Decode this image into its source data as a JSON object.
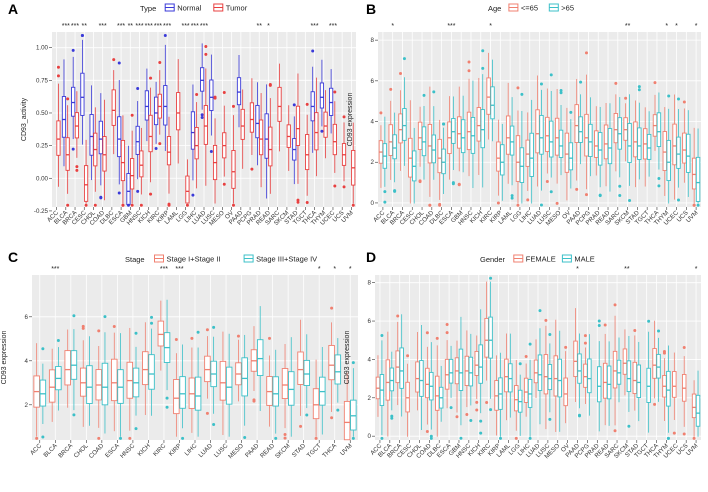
{
  "colors": {
    "A": [
      "#3a3ad8",
      "#e84040"
    ],
    "B": [
      "#f08070",
      "#3cc0c8"
    ],
    "C": [
      "#f08070",
      "#3cc0c8"
    ],
    "D": [
      "#f08070",
      "#3cc0c8"
    ]
  },
  "chart_data": [
    {
      "panel": "A",
      "type": "box",
      "legend_title": "Type",
      "series": [
        {
          "name": "Normal"
        },
        {
          "name": "Tumor"
        }
      ],
      "ylabel": "CD93_activity",
      "ylim": [
        -0.22,
        1.12
      ],
      "yticks": [
        -0.25,
        0.0,
        0.25,
        0.5,
        0.75,
        1.0
      ],
      "ytick_labels": [
        "-0.25",
        "0.00",
        "0.25",
        "0.50",
        "0.75",
        "1.00"
      ],
      "categories": [
        "ACC",
        "BLCA",
        "BRCA",
        "CESC",
        "CHOL",
        "COAD",
        "DLBC",
        "ESCA",
        "GBM",
        "HNSC",
        "KICH",
        "KIRC",
        "KIRP",
        "LAML",
        "LGG",
        "LIHC",
        "LUAD",
        "LUSC",
        "MESO",
        "OV",
        "PAAD",
        "PCPG",
        "PRAD",
        "READ",
        "SARC",
        "SKCM",
        "STAD",
        "TGCT",
        "THCA",
        "THYM",
        "UCEC",
        "UCS",
        "UVM"
      ],
      "significance": [
        "",
        "***",
        "***",
        "**",
        "",
        "***",
        "",
        "***",
        "**",
        "***",
        "***",
        "***",
        "***",
        "",
        "***",
        "***",
        "***",
        "",
        "",
        "",
        "",
        "",
        "**",
        "*",
        "",
        "",
        "",
        "",
        "***",
        "",
        "***",
        "",
        ""
      ],
      "medians": [
        [
          null,
          0.3
        ],
        [
          0.45,
          0.18
        ],
        [
          0.58,
          0.4
        ],
        [
          0.62,
          -0.05
        ],
        [
          0.32,
          0.22
        ],
        [
          0.3,
          0.18
        ],
        [
          null,
          0.52
        ],
        [
          0.3,
          0.12
        ],
        [
          -0.1,
          0.02
        ],
        [
          0.28,
          0.1
        ],
        [
          0.55,
          0.32
        ],
        [
          0.5,
          0.55
        ],
        [
          0.55,
          0.2
        ],
        [
          null,
          0.5
        ],
        [
          null,
          -0.1
        ],
        [
          0.35,
          0.25
        ],
        [
          0.75,
          0.4
        ],
        [
          0.62,
          0.12
        ],
        [
          null,
          0.25
        ],
        [
          null,
          0.05
        ],
        [
          0.66,
          0.4
        ],
        [
          null,
          0.45
        ],
        [
          0.42,
          0.3
        ],
        [
          0.3,
          0.22
        ],
        [
          null,
          0.55
        ],
        [
          null,
          0.32
        ],
        [
          0.22,
          0.38
        ],
        [
          null,
          0.18
        ],
        [
          0.55,
          0.35
        ],
        [
          0.62,
          0.4
        ],
        [
          0.58,
          0.28
        ],
        [
          null,
          0.18
        ],
        [
          null,
          0.08
        ]
      ]
    },
    {
      "panel": "B",
      "type": "box",
      "legend_title": "Age",
      "series": [
        {
          "name": "<=65"
        },
        {
          "name": ">65"
        }
      ],
      "ylabel": "CD93 expression",
      "ylim": [
        -0.2,
        8.4
      ],
      "yticks": [
        0,
        2,
        4,
        6,
        8
      ],
      "ytick_labels": [
        "0",
        "2",
        "4",
        "6",
        "8"
      ],
      "categories": [
        "ACC",
        "BLCA",
        "BRCA",
        "CESC",
        "CHOL",
        "COAD",
        "DLBC",
        "ESCA",
        "GBM",
        "HNSC",
        "KICH",
        "KIRC",
        "KIRP",
        "LAML",
        "LGG",
        "LIHC",
        "LUAD",
        "LUSC",
        "MESO",
        "OV",
        "PAAD",
        "PCPG",
        "PRAD",
        "READ",
        "SARC",
        "SKCM",
        "STAD",
        "TGCT",
        "THCA",
        "THYM",
        "UCEC",
        "UCS",
        "UVM"
      ],
      "significance": [
        "",
        "*",
        "",
        "",
        "",
        "",
        "",
        "***",
        "",
        "",
        "",
        "*",
        "",
        "",
        "",
        "",
        "",
        "",
        "",
        "",
        "",
        "",
        "",
        "",
        "",
        "**",
        "",
        "",
        "",
        "*",
        "*",
        "",
        "*"
      ],
      "medians": [
        [
          2.5,
          2.3
        ],
        [
          3.0,
          2.7
        ],
        [
          3.6,
          3.8
        ],
        [
          2.2,
          1.8
        ],
        [
          3.2,
          3.0
        ],
        [
          2.8,
          2.6
        ],
        [
          2.2,
          2.0
        ],
        [
          3.2,
          3.5
        ],
        [
          3.4,
          3.2
        ],
        [
          3.5,
          3.3
        ],
        [
          3.8,
          3.6
        ],
        [
          5.2,
          4.8
        ],
        [
          2.2,
          2.0
        ],
        [
          3.2,
          3.0
        ],
        [
          2.0,
          1.8
        ],
        [
          2.4,
          2.2
        ],
        [
          3.4,
          3.2
        ],
        [
          3.3,
          3.0
        ],
        [
          3.2,
          2.8
        ],
        [
          2.4,
          2.2
        ],
        [
          3.8,
          3.5
        ],
        [
          3.2,
          3.0
        ],
        [
          2.8,
          2.6
        ],
        [
          2.9,
          2.7
        ],
        [
          3.6,
          3.4
        ],
        [
          3.6,
          2.8
        ],
        [
          3.0,
          2.8
        ],
        [
          2.9,
          2.7
        ],
        [
          3.8,
          3.5
        ],
        [
          2.5,
          2.0
        ],
        [
          2.8,
          2.4
        ],
        [
          2.6,
          2.3
        ],
        [
          1.4,
          1.0
        ]
      ]
    },
    {
      "panel": "C",
      "type": "box",
      "legend_title": "Stage",
      "series": [
        {
          "name": "Stage I+Stage II"
        },
        {
          "name": "Stage III+Stage IV"
        }
      ],
      "ylabel": "CD93 expression",
      "ylim": [
        0.4,
        7.9
      ],
      "yticks": [
        2,
        4,
        6
      ],
      "ytick_labels": [
        "2",
        "4",
        "6"
      ],
      "categories": [
        "ACC",
        "BLCA",
        "BRCA",
        "CHOL",
        "COAD",
        "ESCA",
        "HNSC",
        "KICH",
        "KIRC",
        "KIRP",
        "LIHC",
        "LUAD",
        "LUSC",
        "MESO",
        "PAAD",
        "READ",
        "SKCM",
        "STAD",
        "TGCT",
        "THCA",
        "UVM"
      ],
      "significance": [
        "",
        "***",
        "",
        "",
        "",
        "",
        "",
        "",
        "***",
        "***",
        "",
        "",
        "",
        "",
        "",
        "",
        "",
        "",
        "*",
        "*",
        "*"
      ],
      "medians": [
        [
          2.6,
          2.5
        ],
        [
          2.8,
          3.2
        ],
        [
          3.6,
          3.8
        ],
        [
          3.0,
          2.8
        ],
        [
          2.9,
          2.8
        ],
        [
          3.0,
          2.8
        ],
        [
          3.1,
          3.0
        ],
        [
          3.6,
          3.4
        ],
        [
          5.2,
          4.6
        ],
        [
          2.3,
          2.5
        ],
        [
          2.5,
          2.4
        ],
        [
          3.6,
          3.4
        ],
        [
          3.0,
          2.8
        ],
        [
          3.4,
          3.2
        ],
        [
          4.0,
          4.1
        ],
        [
          2.6,
          2.5
        ],
        [
          2.9,
          2.7
        ],
        [
          3.6,
          3.4
        ],
        [
          2.0,
          2.6
        ],
        [
          3.8,
          3.5
        ],
        [
          1.2,
          1.5
        ]
      ]
    },
    {
      "panel": "D",
      "type": "box",
      "legend_title": "Gender",
      "series": [
        {
          "name": "FEMALE"
        },
        {
          "name": "MALE"
        }
      ],
      "ylabel": "CD93 expression",
      "ylim": [
        -0.2,
        8.4
      ],
      "yticks": [
        0,
        2,
        4,
        6,
        8
      ],
      "ytick_labels": [
        "0",
        "2",
        "4",
        "6",
        "8"
      ],
      "categories": [
        "ACC",
        "BLCA",
        "BRCA",
        "CESC",
        "CHOL",
        "COAD",
        "DLBC",
        "ESCA",
        "GBM",
        "HNSC",
        "KICH",
        "KIRC",
        "KIRP",
        "LAML",
        "LGG",
        "LIHC",
        "LUAD",
        "LUSC",
        "MESO",
        "OV",
        "PAAD",
        "PCPG",
        "PRAD",
        "READ",
        "SARC",
        "SKCM",
        "STAD",
        "TGCT",
        "THCA",
        "THYM",
        "UCEC",
        "UCS",
        "UVM"
      ],
      "significance": [
        "",
        "",
        "",
        "",
        "",
        "",
        "",
        "",
        "",
        "",
        "",
        "",
        "",
        "",
        "",
        "",
        "",
        "",
        "",
        "",
        "*",
        "",
        "",
        "",
        "",
        "**",
        "",
        "",
        "",
        "",
        "",
        "",
        "*"
      ],
      "medians": [
        [
          2.5,
          2.4
        ],
        [
          2.8,
          2.9
        ],
        [
          3.6,
          3.4
        ],
        [
          2.0,
          null
        ],
        [
          3.0,
          2.9
        ],
        [
          2.7,
          2.6
        ],
        [
          2.1,
          2.0
        ],
        [
          3.2,
          3.3
        ],
        [
          3.4,
          3.3
        ],
        [
          3.4,
          3.3
        ],
        [
          3.7,
          3.6
        ],
        [
          5.0,
          5.0
        ],
        [
          2.1,
          2.2
        ],
        [
          3.1,
          3.0
        ],
        [
          1.9,
          1.8
        ],
        [
          2.3,
          2.2
        ],
        [
          3.3,
          3.2
        ],
        [
          3.1,
          3.0
        ],
        [
          3.0,
          2.9
        ],
        [
          2.2,
          null
        ],
        [
          3.9,
          3.4
        ],
        [
          3.1,
          3.0
        ],
        [
          null,
          2.6
        ],
        [
          2.8,
          2.7
        ],
        [
          3.4,
          3.3
        ],
        [
          3.8,
          3.0
        ],
        [
          2.9,
          2.8
        ],
        [
          null,
          2.6
        ],
        [
          3.7,
          3.6
        ],
        [
          2.6,
          2.4
        ],
        [
          2.6,
          null
        ],
        [
          2.5,
          null
        ],
        [
          1.5,
          1.2
        ]
      ]
    }
  ]
}
